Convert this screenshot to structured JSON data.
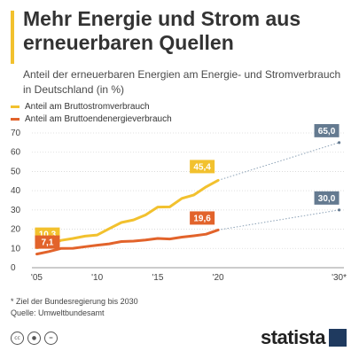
{
  "title": "Mehr Energie und Strom aus erneuerbaren Quellen",
  "subtitle": "Anteil der erneuerbaren Energien am Energie- und Stromverbrauch in Deutschland (in %)",
  "legend": [
    {
      "name": "Anteil am Bruttostromverbrauch",
      "color": "#f2c12e"
    },
    {
      "name": "Anteil am Bruttoendenergieverbrauch",
      "color": "#e2632b"
    }
  ],
  "footnote": "* Ziel der Bundesregierung bis 2030",
  "source": "Quelle: Umweltbundesamt",
  "brand": "statista",
  "cc_icons": [
    "cc-icon",
    "person-icon",
    "equals-icon"
  ],
  "colors": {
    "yellow": "#f2c12e",
    "orange": "#e2632b",
    "target": "#647a90",
    "grid": "#d6d6d6"
  },
  "chart_data": {
    "type": "line",
    "x": [
      2005,
      2006,
      2007,
      2008,
      2009,
      2010,
      2011,
      2012,
      2013,
      2014,
      2015,
      2016,
      2017,
      2018,
      2019,
      2020
    ],
    "series": [
      {
        "name": "Anteil am Bruttostromverbrauch",
        "color": "#f2c12e",
        "values": [
          10.3,
          11.6,
          14.2,
          15.2,
          16.4,
          17.0,
          20.3,
          23.5,
          24.8,
          27.4,
          31.5,
          31.6,
          36.0,
          37.8,
          42.0,
          45.4
        ]
      },
      {
        "name": "Anteil am Bruttoendenergieverbrauch",
        "color": "#e2632b",
        "values": [
          7.1,
          8.4,
          10.0,
          10.1,
          10.9,
          11.7,
          12.4,
          13.6,
          13.8,
          14.4,
          15.2,
          14.9,
          15.9,
          16.6,
          17.4,
          19.6
        ]
      }
    ],
    "targets": [
      {
        "x": 2030,
        "value": 65.0,
        "label": "65,0"
      },
      {
        "x": 2030,
        "value": 30.0,
        "label": "30,0"
      }
    ],
    "point_labels": [
      {
        "series": 0,
        "index": 0,
        "label": "10,3"
      },
      {
        "series": 1,
        "index": 0,
        "label": "7,1"
      },
      {
        "series": 0,
        "index": 15,
        "label": "45,4"
      },
      {
        "series": 1,
        "index": 15,
        "label": "19,6"
      }
    ],
    "xticks": [
      {
        "x": 2005,
        "label": "'05"
      },
      {
        "x": 2010,
        "label": "'10"
      },
      {
        "x": 2015,
        "label": "'15"
      },
      {
        "x": 2020,
        "label": "'20"
      },
      {
        "x": 2030,
        "label": "'30*"
      }
    ],
    "yticks": [
      0,
      10,
      20,
      30,
      40,
      50,
      60,
      70
    ],
    "ylim": [
      0,
      70
    ],
    "grid": true,
    "legend_position": "top-left"
  }
}
